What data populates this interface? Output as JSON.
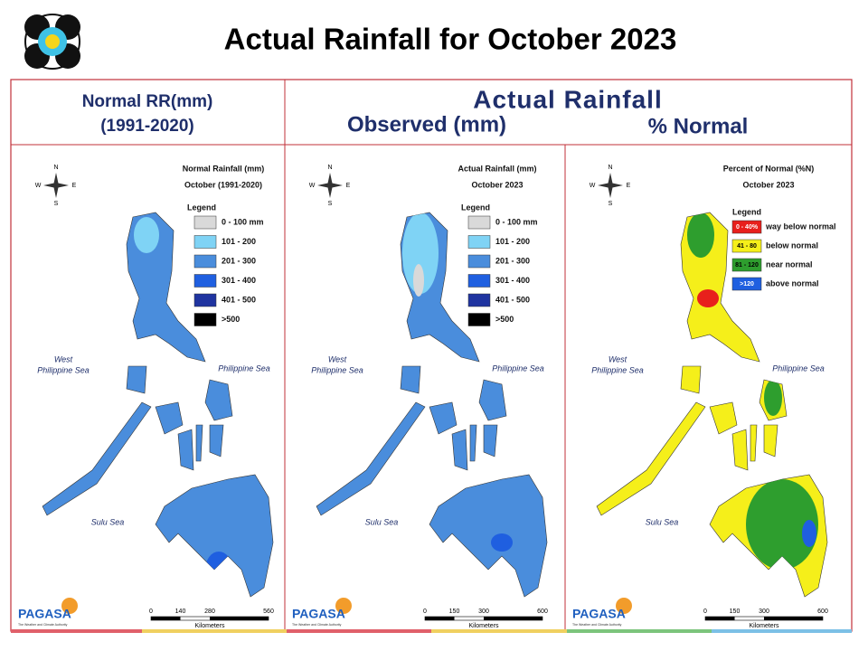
{
  "header": {
    "title": "Actual Rainfall for October 2023",
    "left": [
      "Normal RR(mm)",
      "(1991-2020)"
    ],
    "right_title": "Actual Rainfall",
    "right_sub": [
      "Observed (mm)",
      "% Normal"
    ]
  },
  "legend_title": "Legend",
  "compass": [
    "N",
    "E",
    "S",
    "W"
  ],
  "sea_labels": {
    "west": [
      "West",
      "Philippine Sea"
    ],
    "east": "Philippine Sea",
    "south": "Sulu Sea"
  },
  "scale_unit": "Kilometers",
  "logo": {
    "agency": "PAGASA",
    "tagline": "The Weather and Climate Authority"
  },
  "panels": [
    {
      "title": [
        "Normal Rainfall (mm)",
        "October (1991-2020)"
      ],
      "scale": [
        0,
        140,
        280,
        560
      ],
      "legend": [
        {
          "label": "0 - 100 mm",
          "color": "#d9d9d9"
        },
        {
          "label": "101 - 200",
          "color": "#7fd3f5"
        },
        {
          "label": "201 - 300",
          "color": "#4a8ddc"
        },
        {
          "label": "301 - 400",
          "color": "#1f5fe0"
        },
        {
          "label": "401 - 500",
          "color": "#1f34a0"
        },
        {
          "label": ">500",
          "color": "#000000"
        }
      ]
    },
    {
      "title": [
        "Actual Rainfall (mm)",
        "October 2023"
      ],
      "scale": [
        0,
        150,
        300,
        600
      ],
      "legend": [
        {
          "label": "0 - 100 mm",
          "color": "#d9d9d9"
        },
        {
          "label": "101 - 200",
          "color": "#7fd3f5"
        },
        {
          "label": "201 - 300",
          "color": "#4a8ddc"
        },
        {
          "label": "301 - 400",
          "color": "#1f5fe0"
        },
        {
          "label": "401 - 500",
          "color": "#1f34a0"
        },
        {
          "label": ">500",
          "color": "#000000"
        }
      ]
    },
    {
      "title": [
        "Percent of Normal (%N)",
        "October 2023"
      ],
      "scale": [
        0,
        150,
        300,
        600
      ],
      "legend": [
        {
          "label": "0 - 40%",
          "desc": "way below normal",
          "color": "#e8201c"
        },
        {
          "label": "41 - 80",
          "desc": "below normal",
          "color": "#f5ef1a"
        },
        {
          "label": "81 - 120",
          "desc": "near normal",
          "color": "#2e9e2e"
        },
        {
          "label": ">120",
          "desc": "above normal",
          "color": "#1f5fe0"
        }
      ]
    }
  ]
}
